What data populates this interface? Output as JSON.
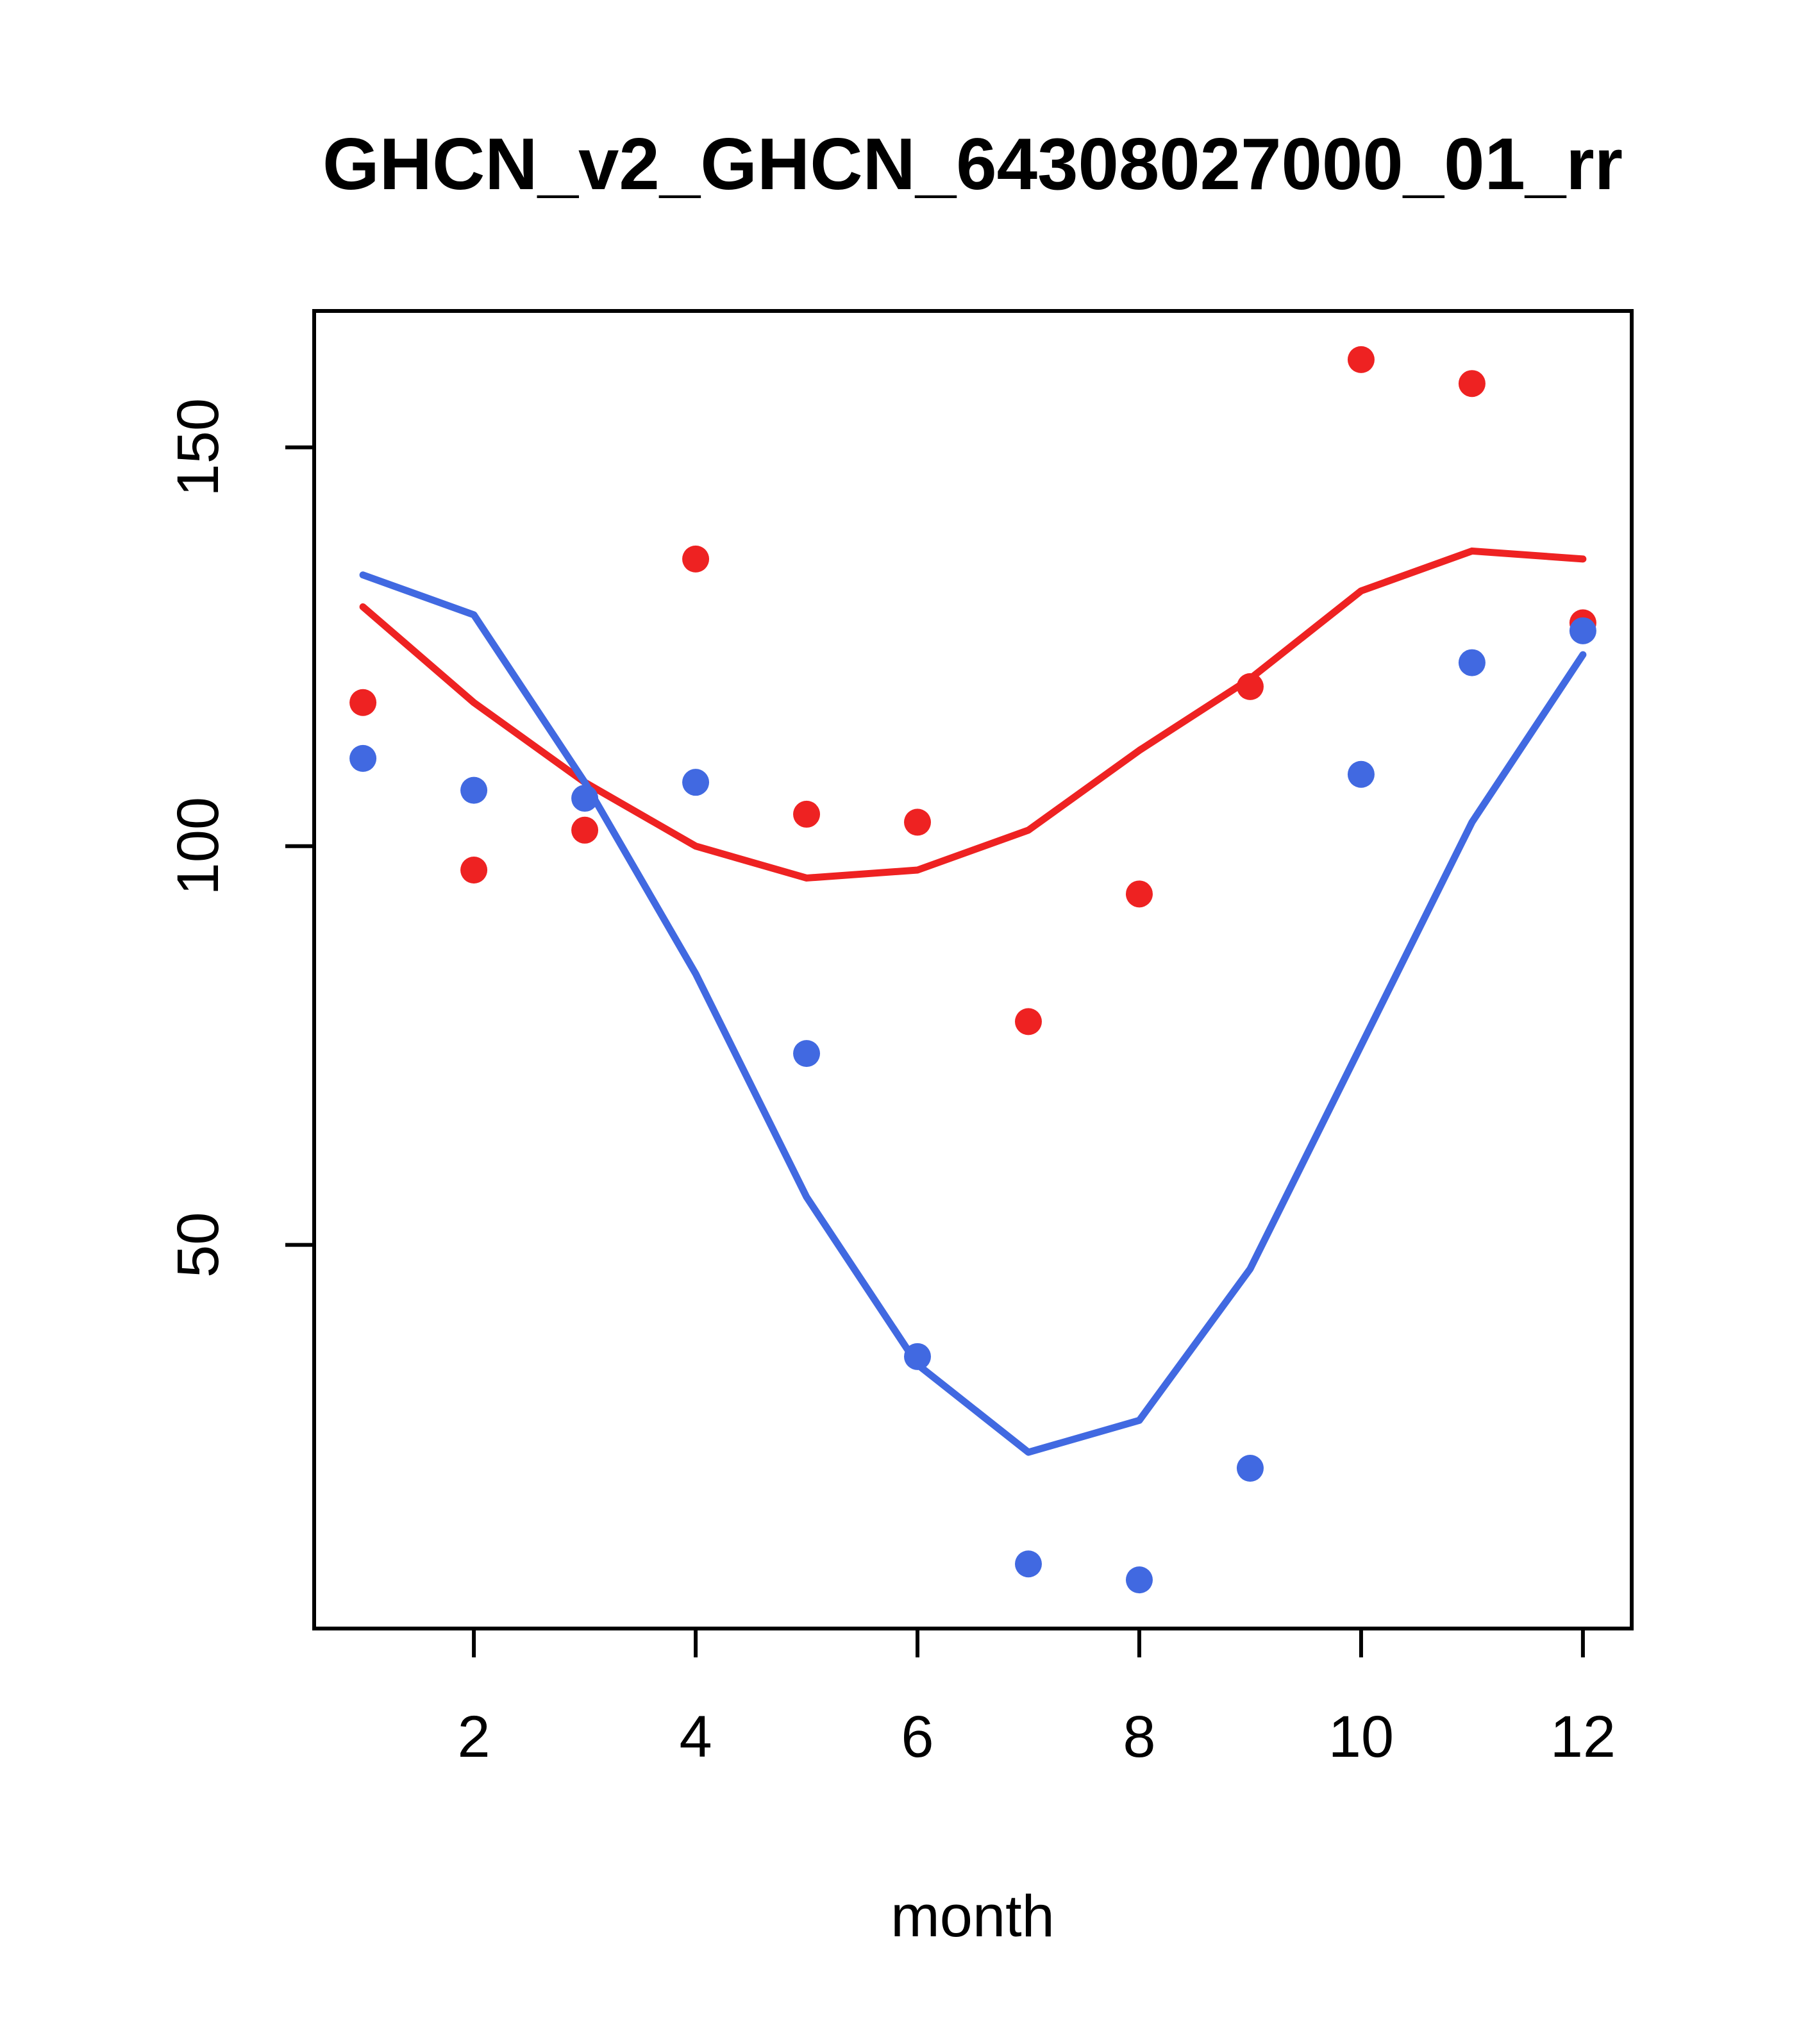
{
  "chart_data": {
    "type": "scatter",
    "title": "GHCN_v2_GHCN_64308027000_01_rr",
    "xlabel": "month",
    "ylabel": "",
    "x_ticks": [
      2,
      4,
      6,
      8,
      10,
      12
    ],
    "y_ticks": [
      50,
      100,
      150
    ],
    "xlim": [
      0.56,
      12.44
    ],
    "ylim": [
      1.9,
      167.1
    ],
    "grid": false,
    "legend": "none",
    "months": [
      1,
      2,
      3,
      4,
      5,
      6,
      7,
      8,
      9,
      10,
      11,
      12
    ],
    "colors": {
      "red": "#ee2222",
      "blue": "#4169e1",
      "axis": "#000000",
      "background": "#ffffff"
    },
    "series": [
      {
        "name": "red-points",
        "type": "points",
        "color": "#ee2222",
        "values": [
          118,
          97,
          102,
          136,
          104,
          103,
          78,
          94,
          120,
          161,
          158,
          128
        ]
      },
      {
        "name": "blue-points",
        "type": "points",
        "color": "#4169e1",
        "values": [
          111,
          107,
          106,
          108,
          74,
          36,
          10,
          8,
          22,
          109,
          123,
          127
        ]
      },
      {
        "name": "red-line",
        "type": "line",
        "color": "#ee2222",
        "values": [
          130,
          118,
          108,
          100,
          96,
          97,
          102,
          112,
          121,
          132,
          137,
          136
        ]
      },
      {
        "name": "blue-line",
        "type": "line",
        "color": "#4169e1",
        "values": [
          134,
          129,
          108,
          84,
          56,
          35,
          24,
          28,
          47,
          75,
          103,
          124
        ]
      }
    ]
  }
}
